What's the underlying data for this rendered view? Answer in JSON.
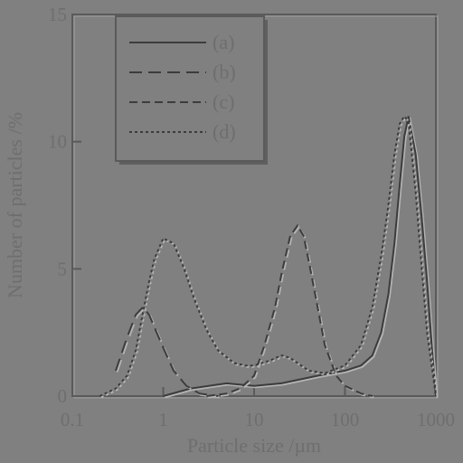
{
  "chart_data": {
    "type": "line",
    "xlabel": "Particle size /µm",
    "ylabel": "Number of particles /%",
    "xscale": "log",
    "xlim": [
      0.1,
      1000
    ],
    "ylim": [
      0,
      15
    ],
    "grid": false,
    "legend_position": "top-left",
    "x_ticks": [
      {
        "value": 0.1,
        "label": "0.1"
      },
      {
        "value": 1,
        "label": "1"
      },
      {
        "value": 10,
        "label": "10"
      },
      {
        "value": 100,
        "label": "100"
      },
      {
        "value": 1000,
        "label": "1000"
      }
    ],
    "y_ticks": [
      {
        "value": 0,
        "label": "0"
      },
      {
        "value": 5,
        "label": "5"
      },
      {
        "value": 10,
        "label": "10"
      },
      {
        "value": 15,
        "label": "15"
      }
    ],
    "series": [
      {
        "name": "(a)",
        "style": "solid",
        "x": [
          1,
          2,
          5,
          10,
          20,
          50,
          100,
          150,
          200,
          250,
          300,
          350,
          400,
          450,
          500,
          600,
          700,
          800,
          900,
          1000
        ],
        "y": [
          0,
          0.3,
          0.5,
          0.4,
          0.5,
          0.8,
          1.0,
          1.2,
          1.6,
          2.5,
          4.0,
          6.0,
          8.3,
          10.2,
          11.0,
          9.5,
          7.0,
          4.5,
          2.0,
          0
        ]
      },
      {
        "name": "(b)",
        "style": "long-dash",
        "x": [
          0.3,
          0.4,
          0.5,
          0.6,
          0.7,
          0.8,
          1,
          1.3,
          1.8,
          2.5,
          4
        ],
        "y": [
          1.0,
          2.3,
          3.2,
          3.5,
          3.2,
          2.7,
          1.9,
          1.0,
          0.4,
          0.1,
          0
        ]
      },
      {
        "name": "(c)",
        "style": "medium-dash",
        "x": [
          3,
          5,
          7,
          10,
          13,
          17,
          20,
          25,
          30,
          35,
          40,
          50,
          60,
          80,
          100,
          150,
          200
        ],
        "y": [
          0,
          0.1,
          0.3,
          0.8,
          2.0,
          3.5,
          4.8,
          6.3,
          6.7,
          6.3,
          5.3,
          3.5,
          2.0,
          0.8,
          0.4,
          0.1,
          0
        ]
      },
      {
        "name": "(d)",
        "style": "dotted",
        "x": [
          0.2,
          0.3,
          0.4,
          0.5,
          0.6,
          0.7,
          0.8,
          1,
          1.3,
          1.7,
          2.2,
          3,
          4,
          6,
          8,
          10,
          15,
          20,
          25,
          30,
          40,
          60,
          100,
          150,
          200,
          250,
          300,
          350,
          400,
          450,
          500,
          600,
          700,
          800,
          1000
        ],
        "y": [
          0,
          0.3,
          0.8,
          1.8,
          3.3,
          4.5,
          5.4,
          6.2,
          6.0,
          5.0,
          3.8,
          2.6,
          1.8,
          1.3,
          1.2,
          1.2,
          1.4,
          1.6,
          1.5,
          1.3,
          1.0,
          0.9,
          1.2,
          2.0,
          3.5,
          5.5,
          7.5,
          9.5,
          10.7,
          11.0,
          10.8,
          8.0,
          5.0,
          2.5,
          0
        ]
      }
    ]
  }
}
